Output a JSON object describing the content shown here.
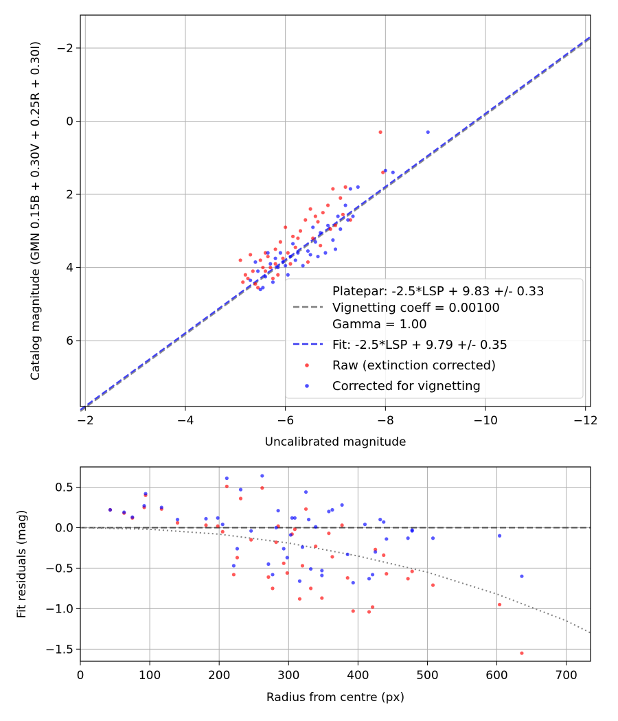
{
  "chart_data": [
    {
      "type": "scatter",
      "xlabel": "Uncalibrated magnitude",
      "ylabel": "Catalog magnitude (GMN 0.15B + 0.30V + 0.25R + 0.30I)",
      "xlim": [
        -1.9,
        -12.1
      ],
      "ylim": [
        7.8,
        -2.9
      ],
      "x_ticks": [
        -2,
        -4,
        -6,
        -8,
        -10,
        -12
      ],
      "x_tick_labels": [
        "−2",
        "−4",
        "−6",
        "−8",
        "−10",
        "−12"
      ],
      "y_ticks": [
        -2,
        0,
        2,
        4,
        6
      ],
      "y_tick_labels": [
        "−2",
        "0",
        "2",
        "4",
        "6"
      ],
      "grid": true,
      "legend_position": "lower-right",
      "lines": [
        {
          "name": "Platepar: -2.5*LSP + 9.83 +/- 0.33\nVignetting coeff = 0.00100\nGamma = 1.00",
          "style": "dashed",
          "color": "#808080",
          "slope": 1,
          "intercept": 9.83,
          "x_range": [
            -1.9,
            -12.1
          ]
        },
        {
          "name": "Fit: -2.5*LSP + 9.79 +/- 0.35",
          "style": "dashed",
          "color": "#3a3af0",
          "slope": 1,
          "intercept": 9.79,
          "x_range": [
            -1.9,
            -12.1
          ]
        }
      ],
      "series": [
        {
          "name": "Raw (extinction corrected)",
          "color": "#ff0000",
          "points": [
            [
              -5.1,
              3.8
            ],
            [
              -5.2,
              4.2
            ],
            [
              -5.25,
              4.3
            ],
            [
              -5.3,
              3.65
            ],
            [
              -5.35,
              4.1
            ],
            [
              -5.4,
              4.45
            ],
            [
              -5.45,
              4.55
            ],
            [
              -5.5,
              3.8
            ],
            [
              -5.55,
              4.0
            ],
            [
              -5.6,
              3.6
            ],
            [
              -5.65,
              3.7
            ],
            [
              -5.7,
              4.0
            ],
            [
              -5.75,
              4.3
            ],
            [
              -5.8,
              3.5
            ],
            [
              -5.85,
              4.2
            ],
            [
              -5.9,
              3.3
            ],
            [
              -5.95,
              3.75
            ],
            [
              -6.0,
              2.9
            ],
            [
              -6.05,
              3.6
            ],
            [
              -6.1,
              3.9
            ],
            [
              -6.15,
              3.15
            ],
            [
              -6.2,
              3.45
            ],
            [
              -6.3,
              3.0
            ],
            [
              -6.4,
              2.7
            ],
            [
              -6.45,
              3.85
            ],
            [
              -6.5,
              2.4
            ],
            [
              -6.55,
              3.2
            ],
            [
              -6.6,
              2.6
            ],
            [
              -6.65,
              2.75
            ],
            [
              -6.7,
              3.4
            ],
            [
              -6.75,
              2.5
            ],
            [
              -6.85,
              2.3
            ],
            [
              -6.9,
              2.95
            ],
            [
              -6.95,
              1.85
            ],
            [
              -7.0,
              2.85
            ],
            [
              -7.1,
              2.1
            ],
            [
              -7.15,
              2.55
            ],
            [
              -7.2,
              1.8
            ],
            [
              -7.3,
              2.7
            ],
            [
              -7.9,
              0.3
            ],
            [
              -7.95,
              1.4
            ],
            [
              -5.15,
              4.4
            ],
            [
              -5.6,
              4.1
            ],
            [
              -5.8,
              3.9
            ],
            [
              -6.25,
              3.2
            ]
          ]
        },
        {
          "name": "Corrected for vignetting",
          "color": "#0000ff",
          "points": [
            [
              -5.3,
              4.35
            ],
            [
              -5.4,
              3.85
            ],
            [
              -5.45,
              4.1
            ],
            [
              -5.5,
              4.6
            ],
            [
              -5.6,
              4.25
            ],
            [
              -5.65,
              3.6
            ],
            [
              -5.7,
              3.9
            ],
            [
              -5.75,
              4.4
            ],
            [
              -5.8,
              3.75
            ],
            [
              -5.85,
              4.0
            ],
            [
              -5.9,
              3.6
            ],
            [
              -5.95,
              3.85
            ],
            [
              -6.0,
              3.95
            ],
            [
              -6.05,
              4.2
            ],
            [
              -6.1,
              3.7
            ],
            [
              -6.15,
              3.35
            ],
            [
              -6.2,
              3.8
            ],
            [
              -6.25,
              3.6
            ],
            [
              -6.35,
              3.95
            ],
            [
              -6.45,
              3.55
            ],
            [
              -6.5,
              3.65
            ],
            [
              -6.55,
              2.9
            ],
            [
              -6.6,
              3.3
            ],
            [
              -6.65,
              3.7
            ],
            [
              -6.7,
              3.05
            ],
            [
              -6.8,
              3.6
            ],
            [
              -6.85,
              2.85
            ],
            [
              -6.95,
              3.25
            ],
            [
              -7.0,
              3.5
            ],
            [
              -7.05,
              2.6
            ],
            [
              -7.1,
              2.95
            ],
            [
              -7.2,
              2.3
            ],
            [
              -7.25,
              2.7
            ],
            [
              -7.3,
              1.85
            ],
            [
              -7.35,
              2.6
            ],
            [
              -7.45,
              1.8
            ],
            [
              -8.0,
              1.35
            ],
            [
              -8.15,
              1.4
            ],
            [
              -8.85,
              0.3
            ],
            [
              -5.55,
              4.55
            ]
          ]
        }
      ]
    },
    {
      "type": "scatter",
      "xlabel": "Radius from centre (px)",
      "ylabel": "Fit residuals (mag)",
      "xlim": [
        0,
        735
      ],
      "ylim": [
        -1.65,
        0.75
      ],
      "x_ticks": [
        0,
        100,
        200,
        300,
        400,
        500,
        600,
        700
      ],
      "x_tick_labels": [
        "0",
        "100",
        "200",
        "300",
        "400",
        "500",
        "600",
        "700"
      ],
      "y_ticks": [
        0.5,
        0.0,
        -0.5,
        -1.0,
        -1.5
      ],
      "y_tick_labels": [
        "0.5",
        "0.0",
        "−0.5",
        "−1.0",
        "−1.5"
      ],
      "grid": true,
      "reference_line": {
        "y": 0,
        "style": "dashed",
        "color": "#505050"
      },
      "vignetting_curve": {
        "style": "dotted",
        "color": "#808080",
        "points": [
          [
            0,
            0
          ],
          [
            100,
            -0.02
          ],
          [
            200,
            -0.08
          ],
          [
            300,
            -0.19
          ],
          [
            400,
            -0.35
          ],
          [
            500,
            -0.55
          ],
          [
            600,
            -0.82
          ],
          [
            700,
            -1.15
          ],
          [
            735,
            -1.3
          ]
        ]
      },
      "series": [
        {
          "name": "Raw (extinction corrected)",
          "color": "#ff0000",
          "points": [
            [
              43,
              0.22
            ],
            [
              63,
              0.18
            ],
            [
              75,
              0.12
            ],
            [
              92,
              0.25
            ],
            [
              94,
              0.4
            ],
            [
              117,
              0.23
            ],
            [
              140,
              0.06
            ],
            [
              181,
              0.03
            ],
            [
              198,
              0.02
            ],
            [
              205,
              -0.05
            ],
            [
              211,
              0.51
            ],
            [
              221,
              -0.58
            ],
            [
              226,
              -0.37
            ],
            [
              231,
              0.36
            ],
            [
              246,
              -0.15
            ],
            [
              262,
              0.49
            ],
            [
              271,
              -0.61
            ],
            [
              277,
              -0.75
            ],
            [
              282,
              -0.18
            ],
            [
              285,
              0.02
            ],
            [
              293,
              -0.44
            ],
            [
              298,
              -0.56
            ],
            [
              305,
              -0.08
            ],
            [
              309,
              -0.02
            ],
            [
              316,
              -0.88
            ],
            [
              320,
              -0.47
            ],
            [
              325,
              0.23
            ],
            [
              332,
              -0.75
            ],
            [
              339,
              -0.23
            ],
            [
              348,
              -0.87
            ],
            [
              358,
              -0.07
            ],
            [
              363,
              -0.36
            ],
            [
              377,
              0.03
            ],
            [
              385,
              -0.62
            ],
            [
              393,
              -1.03
            ],
            [
              416,
              -1.04
            ],
            [
              421,
              -0.98
            ],
            [
              425,
              -0.27
            ],
            [
              437,
              -0.34
            ],
            [
              441,
              -0.57
            ],
            [
              472,
              -0.63
            ],
            [
              478,
              -0.54
            ],
            [
              508,
              -0.71
            ],
            [
              604,
              -0.95
            ],
            [
              636,
              -1.55
            ]
          ]
        },
        {
          "name": "Corrected for vignetting",
          "color": "#0000ff",
          "points": [
            [
              43,
              0.22
            ],
            [
              63,
              0.19
            ],
            [
              75,
              0.13
            ],
            [
              92,
              0.27
            ],
            [
              94,
              0.42
            ],
            [
              117,
              0.25
            ],
            [
              140,
              0.1
            ],
            [
              181,
              0.11
            ],
            [
              198,
              0.12
            ],
            [
              205,
              0.04
            ],
            [
              211,
              0.61
            ],
            [
              221,
              -0.47
            ],
            [
              226,
              -0.26
            ],
            [
              231,
              0.47
            ],
            [
              246,
              -0.04
            ],
            [
              262,
              0.64
            ],
            [
              271,
              -0.45
            ],
            [
              277,
              -0.58
            ],
            [
              282,
              0.0
            ],
            [
              285,
              0.21
            ],
            [
              293,
              -0.26
            ],
            [
              298,
              -0.37
            ],
            [
              305,
              0.12
            ],
            [
              309,
              0.12
            ],
            [
              316,
              -0.66
            ],
            [
              320,
              -0.24
            ],
            [
              325,
              0.44
            ],
            [
              332,
              -0.51
            ],
            [
              339,
              0.01
            ],
            [
              348,
              -0.59
            ],
            [
              358,
              0.2
            ],
            [
              363,
              0.22
            ],
            [
              377,
              0.28
            ],
            [
              385,
              -0.33
            ],
            [
              393,
              -0.68
            ],
            [
              416,
              -0.63
            ],
            [
              421,
              -0.58
            ],
            [
              425,
              -0.3
            ],
            [
              437,
              0.07
            ],
            [
              441,
              -0.14
            ],
            [
              472,
              -0.13
            ],
            [
              478,
              -0.03
            ],
            [
              508,
              -0.13
            ],
            [
              604,
              -0.1
            ],
            [
              636,
              -0.6
            ],
            [
              348,
              -0.53
            ],
            [
              329,
              0.1
            ],
            [
              410,
              0.04
            ],
            [
              432,
              0.1
            ],
            [
              478,
              -0.04
            ],
            [
              303,
              -0.09
            ]
          ]
        }
      ]
    }
  ]
}
